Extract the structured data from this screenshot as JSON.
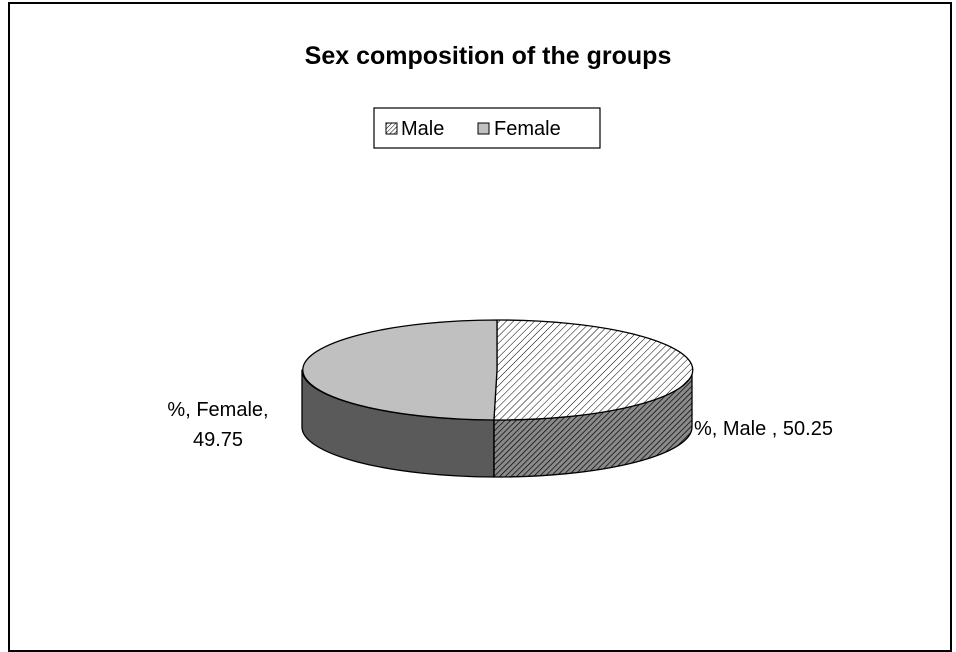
{
  "chart_data": {
    "type": "pie",
    "title": "Sex composition of the groups",
    "categories": [
      "Male",
      "Female"
    ],
    "values": [
      50.25,
      49.75
    ],
    "data_labels": [
      {
        "category": "Male",
        "lines": [
          "%, Male , 50.25"
        ]
      },
      {
        "category": "Female",
        "lines": [
          "%, Female,",
          "49.75"
        ]
      }
    ],
    "legend": {
      "entries": [
        {
          "name": "Male",
          "fill": "hatch"
        },
        {
          "name": "Female",
          "fill": "solid"
        }
      ],
      "placement": "top"
    },
    "style": "3d",
    "colors": {
      "female_top": "#c0c0c0",
      "female_side": "#5a5a5a",
      "male_top": "#ffffff",
      "hatch": "#000000"
    }
  }
}
